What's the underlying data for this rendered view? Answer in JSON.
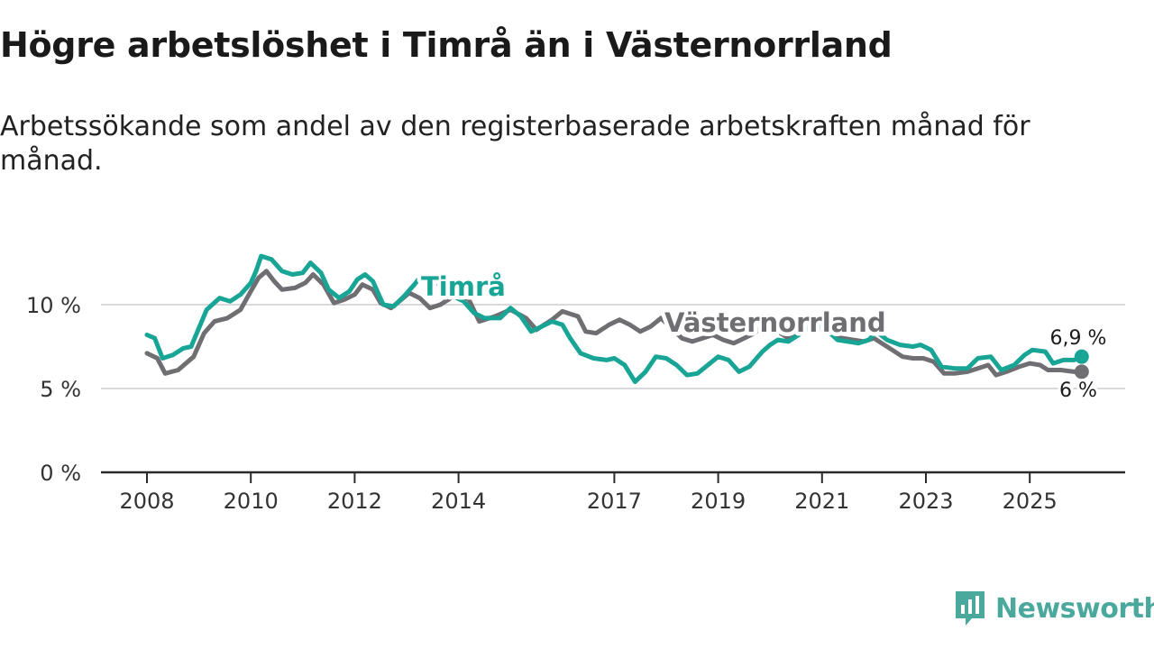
{
  "title": "Högre arbetslöshet i Timrå än i Västernorrland",
  "subtitle": "Arbetssökande som andel av den registerbaserade arbetskraften månad för månad.",
  "brand": {
    "name": "Newsworthy",
    "color": "#4aa89c"
  },
  "chart_data": {
    "type": "line",
    "title": "Högre arbetslöshet i Timrå än i Västernorrland",
    "xlabel": "",
    "ylabel": "",
    "xlim": [
      2008,
      2026.5
    ],
    "ylim": [
      0,
      13
    ],
    "y_ticks": [
      {
        "value": 0,
        "label": "0 %"
      },
      {
        "value": 5,
        "label": "5 %"
      },
      {
        "value": 10,
        "label": "10 %"
      }
    ],
    "x_ticks": [
      {
        "value": 2008,
        "label": "2008"
      },
      {
        "value": 2010,
        "label": "2010"
      },
      {
        "value": 2012,
        "label": "2012"
      },
      {
        "value": 2014,
        "label": "2014"
      },
      {
        "value": 2017,
        "label": "2017"
      },
      {
        "value": 2019,
        "label": "2019"
      },
      {
        "value": 2021,
        "label": "2021"
      },
      {
        "value": 2023,
        "label": "2023"
      },
      {
        "value": 2025,
        "label": "2025"
      }
    ],
    "series": [
      {
        "name": "Västernorrland",
        "color": "#6e6e73",
        "end_label": "6 %",
        "points": [
          [
            2008.0,
            7.1
          ],
          [
            2008.2,
            6.8
          ],
          [
            2008.35,
            5.9
          ],
          [
            2008.6,
            6.1
          ],
          [
            2008.9,
            6.9
          ],
          [
            2009.1,
            8.3
          ],
          [
            2009.3,
            9.0
          ],
          [
            2009.55,
            9.2
          ],
          [
            2009.8,
            9.7
          ],
          [
            2010.0,
            10.8
          ],
          [
            2010.15,
            11.6
          ],
          [
            2010.3,
            12.0
          ],
          [
            2010.45,
            11.4
          ],
          [
            2010.6,
            10.9
          ],
          [
            2010.85,
            11.0
          ],
          [
            2011.05,
            11.3
          ],
          [
            2011.2,
            11.8
          ],
          [
            2011.4,
            11.2
          ],
          [
            2011.6,
            10.1
          ],
          [
            2011.8,
            10.3
          ],
          [
            2012.0,
            10.6
          ],
          [
            2012.15,
            11.2
          ],
          [
            2012.35,
            10.9
          ],
          [
            2012.5,
            10.1
          ],
          [
            2012.7,
            9.8
          ],
          [
            2012.9,
            10.3
          ],
          [
            2013.05,
            10.7
          ],
          [
            2013.25,
            10.4
          ],
          [
            2013.45,
            9.8
          ],
          [
            2013.65,
            10.0
          ],
          [
            2013.85,
            10.4
          ],
          [
            2014.05,
            10.6
          ],
          [
            2014.2,
            10.3
          ],
          [
            2014.4,
            9.0
          ],
          [
            2014.7,
            9.3
          ],
          [
            2015.0,
            9.7
          ],
          [
            2015.3,
            9.2
          ],
          [
            2015.5,
            8.5
          ],
          [
            2015.8,
            9.1
          ],
          [
            2016.0,
            9.6
          ],
          [
            2016.3,
            9.3
          ],
          [
            2016.45,
            8.4
          ],
          [
            2016.65,
            8.3
          ],
          [
            2016.9,
            8.8
          ],
          [
            2017.1,
            9.1
          ],
          [
            2017.3,
            8.8
          ],
          [
            2017.5,
            8.4
          ],
          [
            2017.7,
            8.7
          ],
          [
            2017.9,
            9.2
          ],
          [
            2018.1,
            8.6
          ],
          [
            2018.3,
            8.0
          ],
          [
            2018.5,
            7.8
          ],
          [
            2018.7,
            8.0
          ],
          [
            2018.9,
            8.2
          ],
          [
            2019.1,
            7.9
          ],
          [
            2019.3,
            7.7
          ],
          [
            2019.5,
            8.0
          ],
          [
            2019.7,
            8.3
          ],
          [
            2019.9,
            8.9
          ],
          [
            2020.1,
            8.5
          ],
          [
            2020.35,
            8.0
          ],
          [
            2020.55,
            8.2
          ],
          [
            2020.8,
            8.8
          ],
          [
            2021.0,
            8.6
          ],
          [
            2021.2,
            8.2
          ],
          [
            2021.4,
            8.0
          ],
          [
            2021.6,
            7.9
          ],
          [
            2021.8,
            7.8
          ],
          [
            2022.0,
            8.0
          ],
          [
            2022.15,
            7.7
          ],
          [
            2022.35,
            7.3
          ],
          [
            2022.55,
            6.9
          ],
          [
            2022.75,
            6.8
          ],
          [
            2022.95,
            6.8
          ],
          [
            2023.15,
            6.6
          ],
          [
            2023.35,
            5.9
          ],
          [
            2023.55,
            5.9
          ],
          [
            2023.8,
            6.0
          ],
          [
            2024.0,
            6.2
          ],
          [
            2024.2,
            6.4
          ],
          [
            2024.35,
            5.8
          ],
          [
            2024.55,
            6.0
          ],
          [
            2024.8,
            6.3
          ],
          [
            2025.0,
            6.5
          ],
          [
            2025.2,
            6.4
          ],
          [
            2025.35,
            6.1
          ],
          [
            2025.6,
            6.1
          ],
          [
            2025.85,
            6.0
          ],
          [
            2026.0,
            6.0
          ]
        ]
      },
      {
        "name": "Timrå",
        "color": "#18a596",
        "end_label": "6,9 %",
        "points": [
          [
            2008.0,
            8.2
          ],
          [
            2008.15,
            8.0
          ],
          [
            2008.3,
            6.8
          ],
          [
            2008.5,
            7.0
          ],
          [
            2008.7,
            7.4
          ],
          [
            2008.85,
            7.5
          ],
          [
            2009.0,
            8.6
          ],
          [
            2009.15,
            9.7
          ],
          [
            2009.4,
            10.4
          ],
          [
            2009.6,
            10.2
          ],
          [
            2009.8,
            10.6
          ],
          [
            2010.0,
            11.3
          ],
          [
            2010.1,
            12.0
          ],
          [
            2010.2,
            12.9
          ],
          [
            2010.4,
            12.7
          ],
          [
            2010.6,
            12.0
          ],
          [
            2010.8,
            11.8
          ],
          [
            2011.0,
            11.9
          ],
          [
            2011.15,
            12.5
          ],
          [
            2011.35,
            11.9
          ],
          [
            2011.5,
            10.9
          ],
          [
            2011.7,
            10.4
          ],
          [
            2011.9,
            10.8
          ],
          [
            2012.05,
            11.5
          ],
          [
            2012.2,
            11.8
          ],
          [
            2012.35,
            11.4
          ],
          [
            2012.55,
            10.0
          ],
          [
            2012.75,
            9.9
          ],
          [
            2012.95,
            10.5
          ],
          [
            2013.15,
            11.2
          ],
          [
            2013.3,
            11.8
          ],
          [
            2013.5,
            11.6
          ],
          [
            2013.7,
            10.9
          ],
          [
            2013.9,
            10.5
          ],
          [
            2014.1,
            10.2
          ],
          [
            2014.3,
            9.5
          ],
          [
            2014.5,
            9.2
          ],
          [
            2014.8,
            9.2
          ],
          [
            2015.0,
            9.8
          ],
          [
            2015.2,
            9.3
          ],
          [
            2015.4,
            8.4
          ],
          [
            2015.6,
            8.7
          ],
          [
            2015.8,
            9.0
          ],
          [
            2016.0,
            8.8
          ],
          [
            2016.15,
            8.0
          ],
          [
            2016.35,
            7.1
          ],
          [
            2016.6,
            6.8
          ],
          [
            2016.85,
            6.7
          ],
          [
            2017.0,
            6.8
          ],
          [
            2017.2,
            6.4
          ],
          [
            2017.4,
            5.4
          ],
          [
            2017.6,
            6.0
          ],
          [
            2017.8,
            6.9
          ],
          [
            2018.0,
            6.8
          ],
          [
            2018.2,
            6.4
          ],
          [
            2018.4,
            5.8
          ],
          [
            2018.6,
            5.9
          ],
          [
            2018.8,
            6.4
          ],
          [
            2019.0,
            6.9
          ],
          [
            2019.2,
            6.7
          ],
          [
            2019.4,
            6.0
          ],
          [
            2019.6,
            6.3
          ],
          [
            2019.85,
            7.2
          ],
          [
            2020.0,
            7.6
          ],
          [
            2020.15,
            7.9
          ],
          [
            2020.35,
            7.8
          ],
          [
            2020.6,
            8.3
          ],
          [
            2020.85,
            8.9
          ],
          [
            2021.05,
            8.6
          ],
          [
            2021.3,
            7.9
          ],
          [
            2021.5,
            7.8
          ],
          [
            2021.7,
            7.7
          ],
          [
            2021.9,
            7.9
          ],
          [
            2022.05,
            8.4
          ],
          [
            2022.25,
            7.9
          ],
          [
            2022.5,
            7.6
          ],
          [
            2022.75,
            7.5
          ],
          [
            2022.9,
            7.6
          ],
          [
            2023.1,
            7.3
          ],
          [
            2023.3,
            6.3
          ],
          [
            2023.55,
            6.2
          ],
          [
            2023.8,
            6.2
          ],
          [
            2024.0,
            6.8
          ],
          [
            2024.25,
            6.9
          ],
          [
            2024.45,
            6.1
          ],
          [
            2024.7,
            6.4
          ],
          [
            2024.9,
            7.0
          ],
          [
            2025.05,
            7.3
          ],
          [
            2025.3,
            7.2
          ],
          [
            2025.45,
            6.5
          ],
          [
            2025.65,
            6.7
          ],
          [
            2025.85,
            6.7
          ],
          [
            2026.0,
            6.9
          ]
        ]
      }
    ]
  }
}
